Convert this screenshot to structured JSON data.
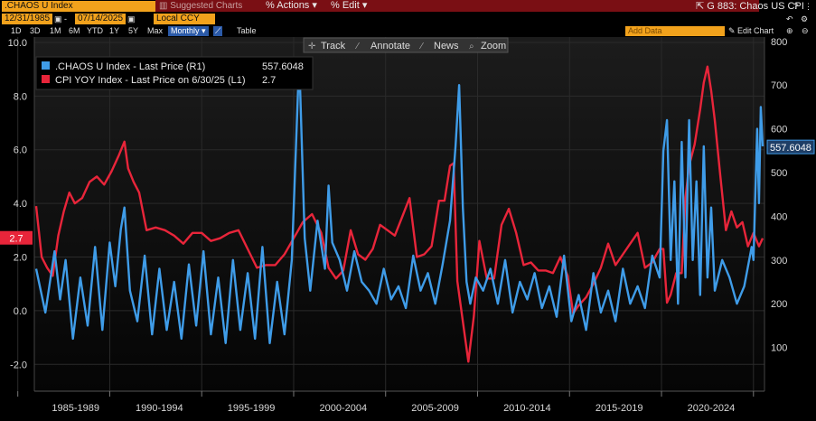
{
  "header": {
    "security_input": ".CHAOS U Index",
    "suggested_charts": "Suggested Charts",
    "actions": "Actions",
    "edit": "Edit",
    "chart_id": "G 883: Chaos US CPI",
    "start_date": "12/31/1985",
    "end_date": "07/14/2025",
    "currency": "Local CCY"
  },
  "toolbar": {
    "periods": [
      "1D",
      "3D",
      "1M",
      "6M",
      "YTD",
      "1Y",
      "5Y",
      "Max"
    ],
    "frequency": "Monthly",
    "table": "Table",
    "add_data_placeholder": "Add Data",
    "edit_chart": "Edit Chart",
    "chart_tools": [
      "Track",
      "Annotate",
      "News",
      "Zoom"
    ]
  },
  "colors": {
    "chaos": "#3f9ce8",
    "cpi": "#e8253a",
    "background": "#000000",
    "grid": "#2a2a2a",
    "toolbar_orange": "#f2a21c",
    "toolbar_red": "#7a0f14"
  },
  "chart_data": {
    "type": "line",
    "legend_placement": "top-left",
    "grid": true,
    "x_tick_labels": [
      "1985-1989",
      "1990-1994",
      "1995-1999",
      "2000-2004",
      "2005-2009",
      "2010-2014",
      "2015-2019",
      "2020-2024"
    ],
    "x_range": [
      1985.9,
      2025.6
    ],
    "left_axis": {
      "ticks": [
        "-2.0",
        "0.0",
        "2.0",
        "4.0",
        "6.0",
        "8.0",
        "10.0"
      ],
      "range": [
        -3.0,
        10.2
      ]
    },
    "right_axis": {
      "ticks": [
        "100",
        "200",
        "300",
        "400",
        "500",
        "600",
        "700",
        "800"
      ],
      "range": [
        0,
        810
      ]
    },
    "series": [
      {
        "name": ".CHAOS U Index - Last Price (R1)",
        "last_value": "557.6048",
        "axis": "right",
        "color": "#3f9ce8",
        "x": [
          1986.0,
          1986.5,
          1987.0,
          1987.3,
          1987.6,
          1988.0,
          1988.4,
          1988.8,
          1989.2,
          1989.6,
          1990.0,
          1990.3,
          1990.6,
          1990.8,
          1991.1,
          1991.5,
          1991.9,
          1992.3,
          1992.7,
          1993.1,
          1993.5,
          1993.9,
          1994.3,
          1994.7,
          1995.1,
          1995.5,
          1995.9,
          1996.3,
          1996.7,
          1997.1,
          1997.5,
          1997.9,
          1998.3,
          1998.7,
          1999.1,
          1999.5,
          1999.9,
          2000.3,
          2000.6,
          2000.9,
          2001.3,
          2001.7,
          2001.9,
          2002.1,
          2002.5,
          2002.9,
          2003.3,
          2003.7,
          2004.1,
          2004.5,
          2004.9,
          2005.3,
          2005.7,
          2006.1,
          2006.5,
          2006.9,
          2007.3,
          2007.7,
          2008.1,
          2008.5,
          2008.8,
          2009.0,
          2009.2,
          2009.4,
          2009.6,
          2009.9,
          2010.3,
          2010.7,
          2011.1,
          2011.5,
          2011.9,
          2012.3,
          2012.7,
          2013.1,
          2013.5,
          2013.9,
          2014.3,
          2014.7,
          2015.1,
          2015.5,
          2015.9,
          2016.3,
          2016.7,
          2017.1,
          2017.5,
          2017.9,
          2018.3,
          2018.7,
          2019.1,
          2019.5,
          2019.9,
          2020.1,
          2020.3,
          2020.5,
          2020.7,
          2020.9,
          2021.1,
          2021.3,
          2021.5,
          2021.7,
          2021.9,
          2022.1,
          2022.3,
          2022.5,
          2022.7,
          2022.9,
          2023.3,
          2023.7,
          2024.1,
          2024.5,
          2024.9,
          2025.0,
          2025.2,
          2025.3,
          2025.4,
          2025.5
        ],
        "y": [
          280,
          180,
          320,
          210,
          300,
          120,
          260,
          150,
          330,
          140,
          340,
          240,
          370,
          420,
          230,
          160,
          310,
          130,
          280,
          140,
          250,
          120,
          290,
          150,
          320,
          130,
          260,
          110,
          300,
          140,
          270,
          120,
          330,
          110,
          250,
          130,
          300,
          760,
          350,
          230,
          390,
          280,
          470,
          340,
          300,
          230,
          320,
          250,
          230,
          200,
          280,
          210,
          240,
          190,
          310,
          230,
          270,
          200,
          290,
          390,
          560,
          700,
          420,
          250,
          200,
          260,
          230,
          280,
          200,
          300,
          180,
          250,
          210,
          270,
          190,
          240,
          170,
          310,
          160,
          220,
          140,
          270,
          180,
          230,
          160,
          280,
          200,
          240,
          190,
          310,
          260,
          550,
          620,
          300,
          480,
          200,
          570,
          260,
          620,
          300,
          480,
          220,
          560,
          260,
          420,
          230,
          300,
          260,
          200,
          240,
          330,
          300,
          600,
          430,
          650,
          560
        ],
        "label_y": 557.6
      },
      {
        "name": "CPI YOY Index - Last Price on 6/30/25 (L1)",
        "last_value": "2.7",
        "axis": "left",
        "color": "#e8253a",
        "x": [
          1986.0,
          1986.3,
          1986.6,
          1986.9,
          1987.2,
          1987.5,
          1987.8,
          1988.1,
          1988.5,
          1988.9,
          1989.3,
          1989.7,
          1990.1,
          1990.5,
          1990.8,
          1991.0,
          1991.3,
          1991.6,
          1992.0,
          1992.5,
          1993.0,
          1993.5,
          1994.0,
          1994.5,
          1995.0,
          1995.5,
          1996.0,
          1996.5,
          1997.0,
          1997.5,
          1998.0,
          1998.5,
          1999.0,
          1999.5,
          2000.0,
          2000.5,
          2001.0,
          2001.5,
          2001.9,
          2002.3,
          2002.7,
          2003.1,
          2003.5,
          2003.9,
          2004.3,
          2004.7,
          2005.1,
          2005.5,
          2005.9,
          2006.3,
          2006.7,
          2007.1,
          2007.5,
          2007.9,
          2008.2,
          2008.5,
          2008.7,
          2008.9,
          2009.2,
          2009.5,
          2009.8,
          2010.1,
          2010.5,
          2010.9,
          2011.3,
          2011.7,
          2012.1,
          2012.5,
          2012.9,
          2013.3,
          2013.7,
          2014.1,
          2014.5,
          2014.9,
          2015.2,
          2015.5,
          2015.9,
          2016.3,
          2016.7,
          2017.1,
          2017.5,
          2017.9,
          2018.3,
          2018.7,
          2019.1,
          2019.5,
          2019.9,
          2020.1,
          2020.3,
          2020.5,
          2020.8,
          2021.1,
          2021.3,
          2021.5,
          2021.8,
          2022.1,
          2022.3,
          2022.5,
          2022.7,
          2022.9,
          2023.2,
          2023.5,
          2023.8,
          2024.1,
          2024.4,
          2024.7,
          2025.0,
          2025.3,
          2025.5
        ],
        "y": [
          3.9,
          2.0,
          1.6,
          1.3,
          2.8,
          3.7,
          4.4,
          4.0,
          4.2,
          4.8,
          5.0,
          4.7,
          5.2,
          5.8,
          6.3,
          5.3,
          4.8,
          4.4,
          3.0,
          3.1,
          3.0,
          2.8,
          2.5,
          2.9,
          2.9,
          2.6,
          2.7,
          2.9,
          3.0,
          2.3,
          1.6,
          1.7,
          1.7,
          2.1,
          2.7,
          3.3,
          3.6,
          2.9,
          1.6,
          1.2,
          1.5,
          3.0,
          2.1,
          1.9,
          2.3,
          3.2,
          3.0,
          2.8,
          3.5,
          4.2,
          2.0,
          2.1,
          2.4,
          4.1,
          4.1,
          5.4,
          5.5,
          1.1,
          -0.4,
          -1.9,
          -0.2,
          2.6,
          1.2,
          1.2,
          3.2,
          3.8,
          2.9,
          1.7,
          1.8,
          1.5,
          1.5,
          1.4,
          2.0,
          1.3,
          -0.1,
          0.2,
          0.5,
          1.0,
          1.6,
          2.5,
          1.7,
          2.1,
          2.5,
          2.9,
          1.6,
          1.8,
          2.3,
          2.3,
          0.3,
          0.6,
          1.4,
          1.4,
          4.2,
          5.4,
          6.2,
          7.5,
          8.5,
          9.1,
          8.2,
          7.1,
          5.0,
          3.0,
          3.7,
          3.1,
          3.3,
          2.4,
          2.9,
          2.4,
          2.7
        ]
      }
    ]
  }
}
